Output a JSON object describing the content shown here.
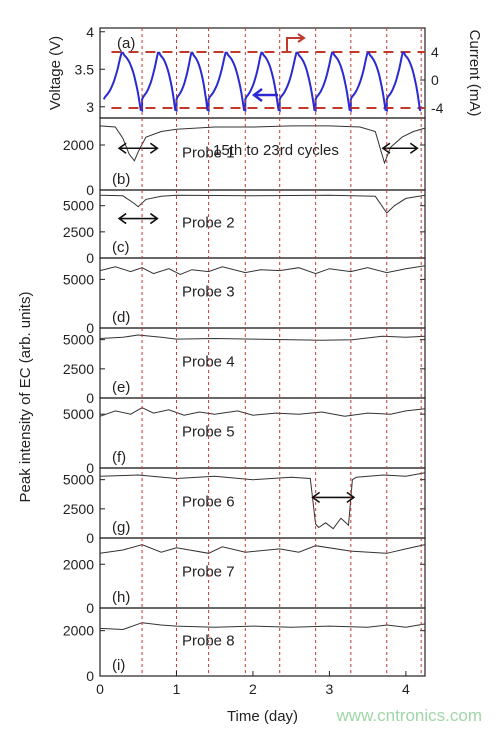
{
  "chart_data": {
    "type": "line",
    "xlabel": "Time (day)",
    "x_ticks": [
      "0",
      "1",
      "2",
      "3",
      "4"
    ],
    "xlim": [
      0,
      4.25
    ],
    "ylabel": "Peak intensity of EC (arb. units)",
    "cycle_markers_day": [
      0.55,
      1.0,
      1.42,
      1.9,
      2.35,
      2.82,
      3.28,
      3.75,
      4.2
    ],
    "annotation": "15th to 23rd cycles",
    "panel_a": {
      "label": "(a)",
      "left_axis": {
        "label": "Voltage (V)",
        "ticks": [
          "3",
          "3.5",
          "4"
        ],
        "ylim": [
          2.85,
          4.05
        ],
        "color": "#2a2ad0"
      },
      "right_axis": {
        "label": "Current (mA)",
        "ticks": [
          "4",
          "0",
          "-4"
        ],
        "color": "#c0392b"
      },
      "cycles": 9,
      "voltage_min": 2.95,
      "voltage_max": 3.72,
      "current_charge_mA": 4,
      "current_discharge_mA": -4
    },
    "panels": [
      {
        "label": "(b)",
        "probe": "Probe 1",
        "ticks": [
          "0",
          "2000"
        ],
        "ylim": [
          0,
          3200
        ],
        "baseline": 2800,
        "x": [
          0,
          0.2,
          0.3,
          0.38,
          0.45,
          0.5,
          0.6,
          0.8,
          1.0,
          1.5,
          2.0,
          2.5,
          3.0,
          3.4,
          3.6,
          3.72,
          3.8,
          3.95,
          4.1,
          4.25
        ],
        "y": [
          2850,
          2800,
          2300,
          1600,
          1300,
          1700,
          2350,
          2600,
          2700,
          2800,
          2800,
          2850,
          2850,
          2800,
          2600,
          1200,
          1900,
          2350,
          2600,
          2750
        ],
        "arrows": [
          [
            0.25,
            0.75
          ],
          [
            3.7,
            4.15
          ]
        ]
      },
      {
        "label": "(c)",
        "probe": "Probe 2",
        "ticks": [
          "0",
          "2500",
          "5000"
        ],
        "ylim": [
          0,
          6500
        ],
        "baseline": 5900,
        "x": [
          0,
          0.3,
          0.45,
          0.5,
          0.6,
          0.8,
          1.0,
          2.0,
          3.0,
          3.6,
          3.75,
          3.85,
          4.0,
          4.25
        ],
        "y": [
          6000,
          5950,
          5200,
          4900,
          5600,
          5900,
          6000,
          5950,
          6000,
          5900,
          4300,
          5000,
          5700,
          6000
        ],
        "arrows": [
          [
            0.25,
            0.75
          ]
        ]
      },
      {
        "label": "(d)",
        "probe": "Probe 3",
        "ticks": [
          "0",
          "5000"
        ],
        "ylim": [
          0,
          7200
        ],
        "baseline": 5900,
        "x": [
          0,
          0.2,
          0.4,
          0.55,
          0.7,
          0.9,
          1.05,
          1.2,
          1.42,
          1.6,
          1.9,
          2.1,
          2.35,
          2.6,
          2.82,
          3.0,
          3.28,
          3.5,
          3.75,
          4.0,
          4.25
        ],
        "y": [
          5900,
          6300,
          5800,
          6200,
          5600,
          6100,
          5500,
          6000,
          5800,
          6300,
          5700,
          6000,
          5900,
          6200,
          5600,
          6100,
          5800,
          6200,
          5700,
          6100,
          6400
        ]
      },
      {
        "label": "(e)",
        "probe": "Probe 4",
        "ticks": [
          "0",
          "2500",
          "5000"
        ],
        "ylim": [
          0,
          6000
        ],
        "baseline": 5200,
        "x": [
          0,
          0.3,
          0.5,
          0.8,
          1.0,
          1.5,
          2.0,
          2.5,
          2.9,
          3.3,
          3.7,
          4.0,
          4.25
        ],
        "y": [
          5100,
          5200,
          5400,
          5200,
          5050,
          5100,
          5050,
          5000,
          4950,
          5000,
          5300,
          5200,
          5300
        ]
      },
      {
        "label": "(f)",
        "probe": "Probe 5",
        "ticks": [
          "0",
          "5000"
        ],
        "ylim": [
          0,
          6500
        ],
        "baseline": 4900,
        "x": [
          0,
          0.2,
          0.4,
          0.55,
          0.7,
          0.9,
          1.1,
          1.3,
          1.5,
          1.8,
          2.0,
          2.3,
          2.6,
          2.9,
          3.2,
          3.5,
          3.8,
          4.0,
          4.25
        ],
        "y": [
          4800,
          5300,
          5000,
          5600,
          5100,
          5400,
          4900,
          5200,
          5000,
          5300,
          4900,
          5100,
          5000,
          5200,
          4800,
          5100,
          5000,
          5300,
          5500
        ]
      },
      {
        "label": "(g)",
        "probe": "Probe 6",
        "ticks": [
          "0",
          "2500",
          "5000"
        ],
        "ylim": [
          0,
          6000
        ],
        "baseline": 5200,
        "x": [
          0,
          0.5,
          1.0,
          1.5,
          2.0,
          2.5,
          2.75,
          2.82,
          2.86,
          2.95,
          3.05,
          3.15,
          3.25,
          3.3,
          3.35,
          3.7,
          4.0,
          4.25
        ],
        "y": [
          5300,
          5400,
          5100,
          5300,
          5000,
          5200,
          5100,
          1200,
          900,
          1300,
          800,
          1700,
          1100,
          5000,
          5200,
          5400,
          5300,
          5600
        ],
        "arrows": [
          [
            2.78,
            3.32
          ]
        ]
      },
      {
        "label": "(h)",
        "probe": "Probe 7",
        "ticks": [
          "0",
          "2000"
        ],
        "ylim": [
          0,
          3200
        ],
        "baseline": 2600,
        "x": [
          0,
          0.3,
          0.55,
          0.8,
          1.0,
          1.42,
          1.6,
          1.9,
          2.35,
          2.6,
          2.82,
          3.28,
          3.75,
          4.0,
          4.25
        ],
        "y": [
          2500,
          2650,
          2900,
          2550,
          2750,
          2500,
          2800,
          2550,
          2700,
          2550,
          2850,
          2600,
          2500,
          2700,
          2900
        ]
      },
      {
        "label": "(i)",
        "probe": "Probe 8",
        "ticks": [
          "0",
          "2000"
        ],
        "ylim": [
          0,
          3000
        ],
        "baseline": 2200,
        "x": [
          0,
          0.3,
          0.55,
          0.8,
          1.0,
          1.5,
          2.0,
          2.5,
          3.0,
          3.5,
          3.75,
          4.0,
          4.25
        ],
        "y": [
          2100,
          2050,
          2350,
          2250,
          2200,
          2150,
          2200,
          2150,
          2200,
          2150,
          2250,
          2150,
          2300
        ]
      }
    ]
  },
  "watermark": "www.cntronics.com"
}
